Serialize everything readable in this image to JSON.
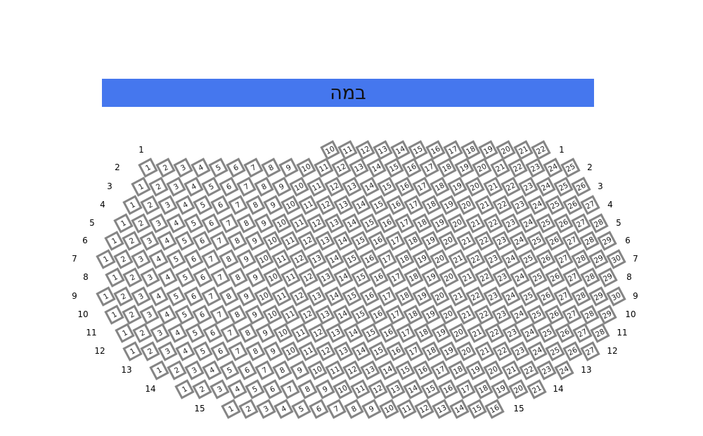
{
  "stage": {
    "label": "במה",
    "color": "#4577ee"
  },
  "seat_style": {
    "border_color": "#858585",
    "fill": "#ffffff"
  },
  "rows": [
    {
      "row": "1",
      "first": 10,
      "last": 22
    },
    {
      "row": "2",
      "first": 1,
      "last": 25
    },
    {
      "row": "3",
      "first": 1,
      "last": 26
    },
    {
      "row": "4",
      "first": 1,
      "last": 27
    },
    {
      "row": "5",
      "first": 1,
      "last": 28
    },
    {
      "row": "6",
      "first": 1,
      "last": 29
    },
    {
      "row": "7",
      "first": 1,
      "last": 30
    },
    {
      "row": "8",
      "first": 1,
      "last": 29
    },
    {
      "row": "9",
      "first": 1,
      "last": 30
    },
    {
      "row": "10",
      "first": 1,
      "last": 29
    },
    {
      "row": "11",
      "first": 1,
      "last": 28
    },
    {
      "row": "12",
      "first": 1,
      "last": 27
    },
    {
      "row": "13",
      "first": 1,
      "last": 24
    },
    {
      "row": "14",
      "first": 1,
      "last": 21
    },
    {
      "row": "15",
      "first": 1,
      "last": 16
    }
  ]
}
